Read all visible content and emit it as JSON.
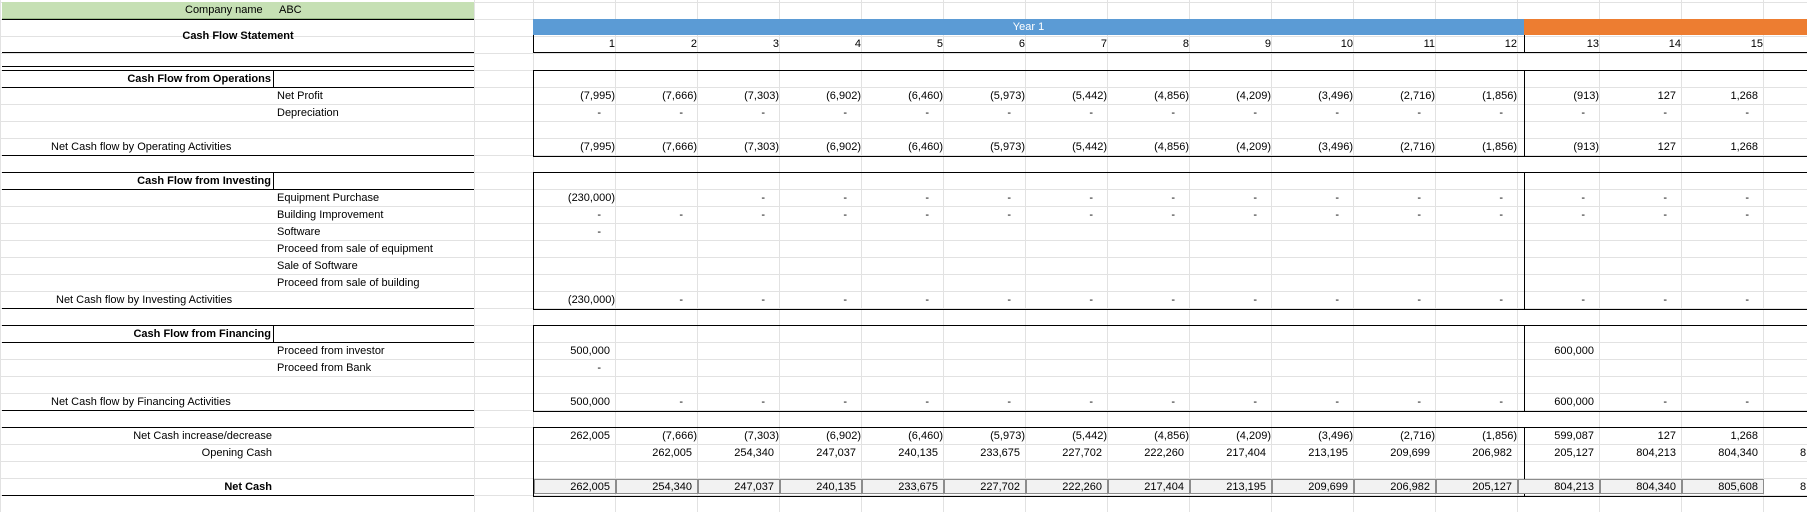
{
  "company": {
    "label": "Company name",
    "value": "ABC"
  },
  "statement_title": "Cash Flow Statement",
  "periods": {
    "year1_label": "Year 1",
    "columns": [
      "1",
      "2",
      "3",
      "4",
      "5",
      "6",
      "7",
      "8",
      "9",
      "10",
      "11",
      "12",
      "13",
      "14",
      "15"
    ]
  },
  "sections": {
    "operations": {
      "title": "Cash Flow from Operations",
      "items": [
        "Net Profit",
        "Depreciation"
      ],
      "total_label": "Net Cash flow by Operating Activities"
    },
    "investing": {
      "title": "Cash Flow from Investing",
      "items": [
        "Equipment Purchase",
        "Building Improvement",
        "Software",
        "Proceed from sale of equipment",
        "Sale of Software",
        "Proceed from sale of building"
      ],
      "total_label": "Net Cash flow by Investing Activities"
    },
    "financing": {
      "title": "Cash Flow from Financing",
      "items": [
        "Proceed from investor",
        "Proceed from Bank"
      ],
      "total_label": "Net Cash flow by Financing Activities"
    },
    "summary": {
      "increase_label": "Net Cash increase/decrease",
      "opening_label": "Opening Cash",
      "net_label": "Net Cash"
    }
  },
  "rows": {
    "net_profit": [
      "(7,995)",
      "(7,666)",
      "(7,303)",
      "(6,902)",
      "(6,460)",
      "(5,973)",
      "(5,442)",
      "(4,856)",
      "(4,209)",
      "(3,496)",
      "(2,716)",
      "(1,856)",
      "(913)",
      "127",
      "1,268"
    ],
    "depreciation": [
      "-",
      "-",
      "-",
      "-",
      "-",
      "-",
      "-",
      "-",
      "-",
      "-",
      "-",
      "-",
      "-",
      "-",
      "-"
    ],
    "net_operating": [
      "(7,995)",
      "(7,666)",
      "(7,303)",
      "(6,902)",
      "(6,460)",
      "(5,973)",
      "(5,442)",
      "(4,856)",
      "(4,209)",
      "(3,496)",
      "(2,716)",
      "(1,856)",
      "(913)",
      "127",
      "1,268"
    ],
    "equipment_purchase": [
      "(230,000)",
      "",
      "-",
      "-",
      "-",
      "-",
      "-",
      "-",
      "-",
      "-",
      "-",
      "-",
      "-",
      "-",
      "-"
    ],
    "building_improvement": [
      "-",
      "-",
      "-",
      "-",
      "-",
      "-",
      "-",
      "-",
      "-",
      "-",
      "-",
      "-",
      "-",
      "-",
      "-"
    ],
    "software": [
      "-",
      "",
      "",
      "",
      "",
      "",
      "",
      "",
      "",
      "",
      "",
      "",
      "",
      "",
      ""
    ],
    "sale_equipment": [
      "",
      "",
      "",
      "",
      "",
      "",
      "",
      "",
      "",
      "",
      "",
      "",
      "",
      "",
      ""
    ],
    "sale_software": [
      "",
      "",
      "",
      "",
      "",
      "",
      "",
      "",
      "",
      "",
      "",
      "",
      "",
      "",
      ""
    ],
    "sale_building": [
      "",
      "",
      "",
      "",
      "",
      "",
      "",
      "",
      "",
      "",
      "",
      "",
      "",
      "",
      ""
    ],
    "net_investing": [
      "(230,000)",
      "-",
      "-",
      "-",
      "-",
      "-",
      "-",
      "-",
      "-",
      "-",
      "-",
      "-",
      "-",
      "-",
      "-"
    ],
    "investor": [
      "500,000",
      "",
      "",
      "",
      "",
      "",
      "",
      "",
      "",
      "",
      "",
      "",
      "600,000",
      "",
      ""
    ],
    "bank": [
      "-",
      "",
      "",
      "",
      "",
      "",
      "",
      "",
      "",
      "",
      "",
      "",
      "",
      "",
      ""
    ],
    "net_financing": [
      "500,000",
      "-",
      "-",
      "-",
      "-",
      "-",
      "-",
      "-",
      "-",
      "-",
      "-",
      "-",
      "600,000",
      "-",
      "-"
    ],
    "net_increase": [
      "262,005",
      "(7,666)",
      "(7,303)",
      "(6,902)",
      "(6,460)",
      "(5,973)",
      "(5,442)",
      "(4,856)",
      "(4,209)",
      "(3,496)",
      "(2,716)",
      "(1,856)",
      "599,087",
      "127",
      "1,268"
    ],
    "opening_cash": [
      "",
      "262,005",
      "254,340",
      "247,037",
      "240,135",
      "233,675",
      "227,702",
      "222,260",
      "217,404",
      "213,195",
      "209,699",
      "206,982",
      "205,127",
      "804,213",
      "804,340"
    ],
    "net_cash": [
      "262,005",
      "254,340",
      "247,037",
      "240,135",
      "233,675",
      "227,702",
      "222,260",
      "217,404",
      "213,195",
      "209,699",
      "206,982",
      "205,127",
      "804,213",
      "804,340",
      "805,608"
    ]
  },
  "overflow_glyph": "8",
  "colors": {
    "company_bg": "#c6e0b4",
    "year1_bg": "#5b9bd5",
    "year2_bg": "#ed7d31",
    "net_cell_bg": "#f2f2f2"
  }
}
